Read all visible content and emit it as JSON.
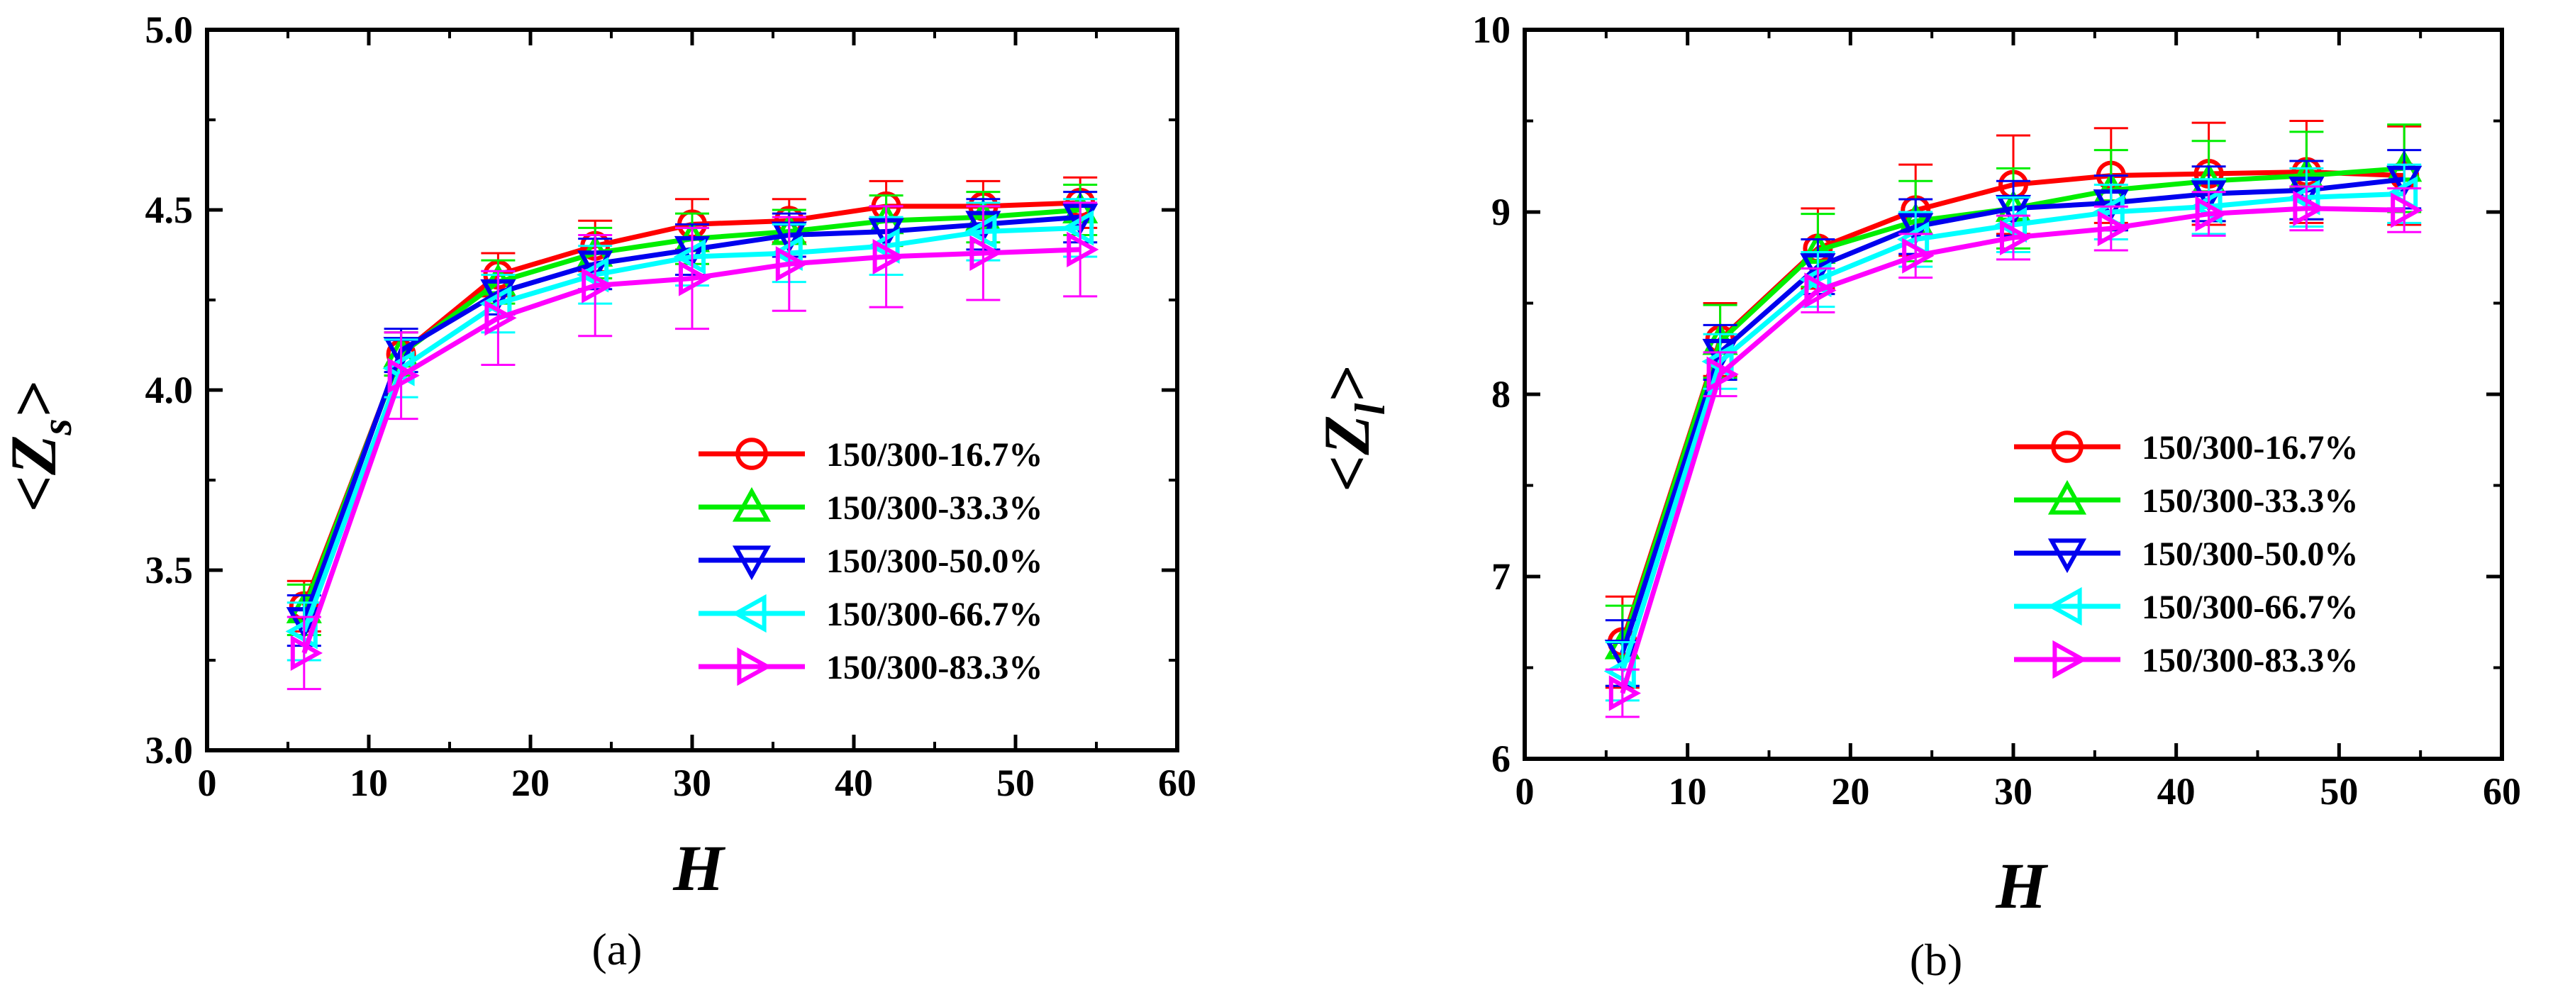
{
  "chart_data": [
    {
      "type": "line",
      "panel_label": "(a)",
      "xlabel": "H",
      "ylabel_main": "Z",
      "ylabel_sub": "s",
      "xlim": [
        0,
        60
      ],
      "ylim": [
        3.0,
        5.0
      ],
      "xticks": [
        0,
        10,
        20,
        30,
        40,
        50,
        60
      ],
      "yticks": [
        3.0,
        3.5,
        4.0,
        4.5,
        5.0
      ],
      "ytick_labels": [
        "3.0",
        "3.5",
        "4.0",
        "4.5",
        "5.0"
      ],
      "legend_position": "lower-right",
      "x": [
        6,
        12,
        18,
        24,
        30,
        36,
        42,
        48,
        54
      ],
      "series": [
        {
          "name": "150/300-16.7%",
          "marker": "circle",
          "color": "#ff0000",
          "values": [
            3.4,
            4.1,
            4.32,
            4.4,
            4.46,
            4.47,
            4.51,
            4.51,
            4.52
          ],
          "errors": [
            0.07,
            0.06,
            0.06,
            0.07,
            0.07,
            0.06,
            0.07,
            0.07,
            0.07
          ]
        },
        {
          "name": "150/300-33.3%",
          "marker": "triangle-up",
          "color": "#00ee00",
          "values": [
            3.39,
            4.1,
            4.3,
            4.38,
            4.42,
            4.44,
            4.47,
            4.48,
            4.5
          ],
          "errors": [
            0.07,
            0.06,
            0.06,
            0.07,
            0.07,
            0.06,
            0.07,
            0.07,
            0.07
          ]
        },
        {
          "name": "150/300-50.0%",
          "marker": "triangle-down",
          "color": "#0000ee",
          "values": [
            3.36,
            4.11,
            4.27,
            4.35,
            4.39,
            4.43,
            4.44,
            4.46,
            4.48
          ],
          "errors": [
            0.07,
            0.06,
            0.06,
            0.07,
            0.07,
            0.06,
            0.07,
            0.07,
            0.07
          ]
        },
        {
          "name": "150/300-66.7%",
          "marker": "triangle-left",
          "color": "#00ffff",
          "values": [
            3.33,
            4.06,
            4.24,
            4.32,
            4.37,
            4.38,
            4.4,
            4.44,
            4.45
          ],
          "errors": [
            0.08,
            0.08,
            0.08,
            0.08,
            0.08,
            0.08,
            0.08,
            0.08,
            0.08
          ]
        },
        {
          "name": "150/300-83.3%",
          "marker": "triangle-right",
          "color": "#ff00ff",
          "values": [
            3.27,
            4.04,
            4.2,
            4.29,
            4.31,
            4.35,
            4.37,
            4.38,
            4.39
          ],
          "errors": [
            0.1,
            0.12,
            0.13,
            0.14,
            0.14,
            0.13,
            0.14,
            0.13,
            0.13
          ]
        }
      ]
    },
    {
      "type": "line",
      "panel_label": "(b)",
      "xlabel": "H",
      "ylabel_main": "Z",
      "ylabel_sub": "l",
      "xlim": [
        0,
        60
      ],
      "ylim": [
        6,
        10
      ],
      "xticks": [
        0,
        10,
        20,
        30,
        40,
        50,
        60
      ],
      "yticks": [
        6,
        7,
        8,
        9,
        10
      ],
      "ytick_labels": [
        "6",
        "7",
        "8",
        "9",
        "10"
      ],
      "legend_position": "lower-right",
      "x": [
        6,
        12,
        18,
        24,
        30,
        36,
        42,
        48,
        54
      ],
      "series": [
        {
          "name": "150/300-16.7%",
          "marker": "circle",
          "color": "#ff0000",
          "values": [
            6.64,
            8.3,
            8.8,
            9.01,
            9.15,
            9.2,
            9.21,
            9.22,
            9.2
          ],
          "errors": [
            0.25,
            0.2,
            0.22,
            0.25,
            0.27,
            0.26,
            0.28,
            0.28,
            0.27
          ]
        },
        {
          "name": "150/300-33.3%",
          "marker": "triangle-up",
          "color": "#00ee00",
          "values": [
            6.62,
            8.29,
            8.79,
            8.95,
            9.02,
            9.12,
            9.17,
            9.2,
            9.24
          ],
          "errors": [
            0.22,
            0.2,
            0.2,
            0.22,
            0.22,
            0.22,
            0.22,
            0.24,
            0.24
          ]
        },
        {
          "name": "150/300-50.0%",
          "marker": "triangle-down",
          "color": "#0000ee",
          "values": [
            6.58,
            8.23,
            8.7,
            8.92,
            9.02,
            9.05,
            9.1,
            9.12,
            9.18
          ],
          "errors": [
            0.18,
            0.15,
            0.15,
            0.15,
            0.15,
            0.15,
            0.15,
            0.16,
            0.16
          ]
        },
        {
          "name": "150/300-66.7%",
          "marker": "triangle-left",
          "color": "#00ffff",
          "values": [
            6.48,
            8.18,
            8.63,
            8.85,
            8.93,
            9.0,
            9.03,
            9.08,
            9.1
          ],
          "errors": [
            0.16,
            0.15,
            0.15,
            0.15,
            0.15,
            0.15,
            0.15,
            0.16,
            0.16
          ]
        },
        {
          "name": "150/300-83.3%",
          "marker": "triangle-right",
          "color": "#ff00ff",
          "values": [
            6.36,
            8.11,
            8.57,
            8.76,
            8.86,
            8.91,
            8.99,
            9.02,
            9.01
          ],
          "errors": [
            0.13,
            0.12,
            0.12,
            0.12,
            0.12,
            0.12,
            0.12,
            0.12,
            0.12
          ]
        }
      ]
    }
  ]
}
